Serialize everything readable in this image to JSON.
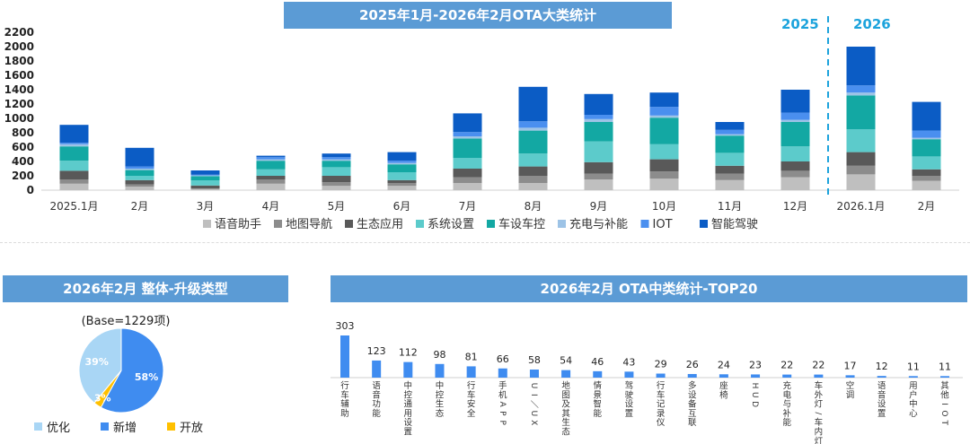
{
  "main": {
    "title": "2025年1月-2026年2月OTA大类统计",
    "year_left": "2025",
    "year_right": "2026"
  },
  "pie_section": {
    "title": "2026年2月 整体-升级类型",
    "base": "(Base=1229项)"
  },
  "top_section": {
    "title": "2026年2月 OTA中类统计-TOP20"
  },
  "colors": {
    "banner": "#5b9bd5",
    "year_text": "#1ca3dc",
    "series": [
      "#bfbfbf",
      "#8c8c8c",
      "#595959",
      "#5ccbcb",
      "#13a8a3",
      "#9dc3e6",
      "#4a8fef",
      "#0b5cc5"
    ],
    "pie": [
      "#a9d6f5",
      "#3f8cf0",
      "#ffc000"
    ],
    "top_bar": "#3f8cf0"
  },
  "chart_data": [
    {
      "type": "bar",
      "stacked": true,
      "title": "2025年1月-2026年2月OTA大类统计",
      "categories": [
        "2025.1月",
        "2月",
        "3月",
        "4月",
        "5月",
        "6月",
        "7月",
        "8月",
        "9月",
        "10月",
        "11月",
        "12月",
        "2026.1月",
        "2月"
      ],
      "ylim": [
        0,
        2200
      ],
      "yticks": [
        0,
        200,
        400,
        600,
        800,
        1000,
        1200,
        1400,
        1600,
        1800,
        2000,
        2200
      ],
      "legend_position": "bottom",
      "series": [
        {
          "name": "语音助手",
          "values": [
            90,
            50,
            15,
            90,
            60,
            60,
            100,
            100,
            150,
            160,
            140,
            180,
            220,
            130
          ]
        },
        {
          "name": "地图导航",
          "values": [
            60,
            30,
            10,
            60,
            50,
            40,
            80,
            100,
            80,
            100,
            90,
            90,
            120,
            70
          ]
        },
        {
          "name": "生态应用",
          "values": [
            120,
            60,
            40,
            50,
            90,
            40,
            120,
            130,
            160,
            170,
            110,
            130,
            190,
            90
          ]
        },
        {
          "name": "系统设置",
          "values": [
            140,
            60,
            70,
            90,
            120,
            110,
            150,
            180,
            290,
            210,
            180,
            210,
            320,
            180
          ]
        },
        {
          "name": "车设车控",
          "values": [
            200,
            80,
            60,
            120,
            90,
            110,
            270,
            320,
            270,
            370,
            240,
            340,
            470,
            240
          ]
        },
        {
          "name": "充电与补能",
          "values": [
            30,
            20,
            10,
            20,
            20,
            20,
            30,
            40,
            40,
            30,
            20,
            30,
            40,
            20
          ]
        },
        {
          "name": "IOT",
          "values": [
            20,
            30,
            10,
            30,
            30,
            30,
            60,
            90,
            60,
            120,
            60,
            100,
            100,
            100
          ]
        },
        {
          "name": "智能驾驶",
          "values": [
            250,
            260,
            60,
            20,
            50,
            120,
            260,
            480,
            290,
            200,
            110,
            320,
            540,
            400
          ]
        }
      ]
    },
    {
      "type": "pie",
      "title": "2026年2月 整体-升级类型",
      "labels": [
        "优化",
        "新增",
        "开放"
      ],
      "values": [
        39,
        58,
        3
      ],
      "value_labels": [
        "39%",
        "58%",
        "3%"
      ]
    },
    {
      "type": "bar",
      "title": "2026年2月 OTA中类统计-TOP20",
      "categories": [
        "行车辅助",
        "语音功能",
        "中控通用设置",
        "中控生态",
        "行车安全",
        "手机APP",
        "UI／UX",
        "地图及其生态",
        "情景智能",
        "驾驶设置",
        "行车记录仪",
        "多设备互联",
        "座椅",
        "HUD",
        "充电与补能",
        "车外灯/车内灯",
        "空调",
        "语音设置",
        "用户中心",
        "其他IOT"
      ],
      "values": [
        303,
        123,
        112,
        98,
        81,
        66,
        58,
        54,
        46,
        43,
        29,
        26,
        24,
        23,
        22,
        22,
        17,
        12,
        11,
        11
      ],
      "value_labels": [
        "303",
        "123",
        "112",
        "98",
        "81",
        "66",
        "58",
        "54",
        "46",
        "43",
        "29",
        "26",
        "24",
        "23",
        "22",
        "22",
        "17",
        "12",
        "11",
        "11"
      ]
    }
  ]
}
